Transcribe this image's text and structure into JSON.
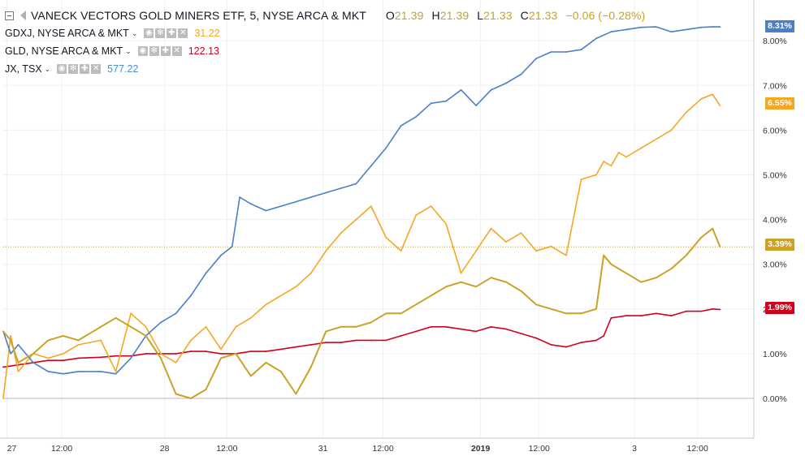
{
  "legend": {
    "main": {
      "title": "VANECK VECTORS GOLD MINERS ETF, 5, NYSE ARCA & MKT",
      "o_key": "O",
      "o_val": "21.39",
      "h_key": "H",
      "h_val": "21.39",
      "l_key": "L",
      "l_val": "21.33",
      "c_key": "C",
      "c_val": "21.33",
      "change": "−0.06 (−0.28%)"
    },
    "compare": [
      {
        "symbol": "GDXJ, NYSE ARCA & MKT",
        "value": "31.22",
        "color": "#f5a623"
      },
      {
        "symbol": "GLD, NYSE ARCA & MKT",
        "value": "122.13",
        "color": "#d0021b"
      },
      {
        "symbol": "JX, TSX",
        "value": "577.22",
        "color": "#4a8fd6"
      }
    ]
  },
  "tags": {
    "jx": "8.31%",
    "gdxj": "6.55%",
    "gdx": "3.39%",
    "gld": "1.99%"
  },
  "chart_data": {
    "type": "line",
    "x_tick_labels": [
      "27",
      "12:00",
      "28",
      "12:00",
      "31",
      "12:00",
      "2019",
      "12:00",
      "3",
      "12:00"
    ],
    "y_tick_labels": [
      "0.00%",
      "1.00%",
      "2.00%",
      "3.00%",
      "4.00%",
      "5.00%",
      "6.00%",
      "7.00%",
      "8.00%"
    ],
    "ylim": [
      -0.9,
      8.8
    ],
    "grid": true,
    "colors": {
      "jx": "#4a7fc9",
      "gdxj": "#f5a623",
      "gld": "#d0021b",
      "gdx": "#c9a227"
    },
    "series": [
      {
        "name": "JX, TSX",
        "key": "jx",
        "x": [
          0,
          1,
          2,
          4,
          6,
          8,
          10,
          13,
          15,
          17,
          19,
          21,
          23,
          25,
          27,
          29,
          30.5,
          31.5,
          33,
          35,
          37,
          39,
          41,
          43,
          45,
          47,
          49,
          51,
          53,
          55,
          57,
          59,
          61,
          63,
          65,
          67,
          69,
          71,
          73,
          75,
          77,
          79,
          81,
          83,
          85,
          87,
          89,
          91,
          93,
          94.5,
          95.5
        ],
        "values": [
          1.5,
          1.0,
          1.2,
          0.8,
          0.6,
          0.55,
          0.6,
          0.6,
          0.55,
          0.9,
          1.4,
          1.7,
          1.9,
          2.3,
          2.8,
          3.2,
          3.4,
          4.5,
          4.35,
          4.2,
          4.3,
          4.4,
          4.5,
          4.6,
          4.7,
          4.8,
          5.2,
          5.6,
          6.1,
          6.3,
          6.6,
          6.65,
          6.9,
          6.55,
          6.9,
          7.05,
          7.25,
          7.6,
          7.75,
          7.75,
          7.8,
          8.05,
          8.2,
          8.25,
          8.3,
          8.31,
          8.2,
          8.25,
          8.3,
          8.31,
          8.31
        ]
      },
      {
        "name": "GDXJ, NYSE ARCA & MKT",
        "key": "gdxj",
        "x": [
          0,
          1,
          2,
          4,
          6,
          8,
          10,
          13,
          15,
          17,
          19,
          21,
          23,
          25,
          27,
          29,
          31,
          33,
          35,
          37,
          39,
          41,
          43,
          45,
          47,
          49,
          51,
          53,
          55,
          57,
          59,
          61,
          63,
          65,
          67,
          69,
          71,
          73,
          75,
          77,
          79,
          80,
          81,
          82,
          83,
          85,
          87,
          89,
          91,
          93,
          94.5,
          95.5
        ],
        "values": [
          0.0,
          1.4,
          0.6,
          1.0,
          0.9,
          1.0,
          1.2,
          1.3,
          0.6,
          1.9,
          1.6,
          1.0,
          0.8,
          1.3,
          1.6,
          1.1,
          1.6,
          1.8,
          2.1,
          2.3,
          2.5,
          2.8,
          3.3,
          3.7,
          4.0,
          4.3,
          3.6,
          3.3,
          4.1,
          4.3,
          3.9,
          2.8,
          3.3,
          3.8,
          3.5,
          3.7,
          3.3,
          3.4,
          3.2,
          4.9,
          5.0,
          5.3,
          5.2,
          5.5,
          5.4,
          5.6,
          5.8,
          6.0,
          6.4,
          6.7,
          6.8,
          6.55
        ]
      },
      {
        "name": "GLD, NYSE ARCA & MKT",
        "key": "gld",
        "x": [
          0,
          2,
          4,
          6,
          8,
          10,
          13,
          15,
          17,
          19,
          21,
          23,
          25,
          27,
          29,
          31,
          33,
          35,
          37,
          39,
          41,
          43,
          45,
          47,
          49,
          51,
          53,
          55,
          57,
          59,
          61,
          63,
          65,
          67,
          69,
          71,
          73,
          75,
          77,
          79,
          80,
          81,
          83,
          85,
          87,
          89,
          91,
          93,
          94.5,
          95.5
        ],
        "values": [
          0.7,
          0.75,
          0.8,
          0.85,
          0.85,
          0.9,
          0.92,
          0.95,
          0.95,
          1.0,
          1.0,
          1.0,
          1.05,
          1.05,
          1.0,
          1.0,
          1.05,
          1.05,
          1.1,
          1.15,
          1.2,
          1.25,
          1.25,
          1.3,
          1.3,
          1.3,
          1.4,
          1.5,
          1.6,
          1.6,
          1.55,
          1.5,
          1.6,
          1.55,
          1.45,
          1.35,
          1.2,
          1.15,
          1.25,
          1.3,
          1.4,
          1.8,
          1.85,
          1.85,
          1.9,
          1.85,
          1.95,
          1.95,
          2.0,
          1.99
        ]
      },
      {
        "name": "VANECK VECTORS GOLD MINERS ETF, 5, NYSE ARCA & MKT",
        "key": "gdx",
        "x": [
          0,
          1,
          2,
          4,
          6,
          8,
          10,
          13,
          15,
          17,
          19,
          21,
          23,
          25,
          27,
          29,
          31,
          33,
          35,
          37,
          39,
          41,
          43,
          45,
          47,
          49,
          51,
          53,
          55,
          57,
          59,
          61,
          63,
          65,
          67,
          69,
          71,
          73,
          75,
          77,
          79,
          80,
          81,
          83,
          85,
          87,
          89,
          91,
          93,
          94.5,
          95.5
        ],
        "values": [
          1.5,
          1.3,
          0.8,
          1.0,
          1.3,
          1.4,
          1.3,
          1.6,
          1.8,
          1.6,
          1.4,
          0.9,
          0.1,
          0.0,
          0.2,
          0.9,
          1.0,
          0.5,
          0.8,
          0.6,
          0.1,
          0.7,
          1.5,
          1.6,
          1.6,
          1.7,
          1.9,
          1.9,
          2.1,
          2.3,
          2.5,
          2.6,
          2.5,
          2.7,
          2.6,
          2.4,
          2.1,
          2.0,
          1.9,
          1.9,
          2.0,
          3.2,
          3.0,
          2.8,
          2.6,
          2.7,
          2.9,
          3.2,
          3.6,
          3.8,
          3.39
        ]
      }
    ]
  }
}
